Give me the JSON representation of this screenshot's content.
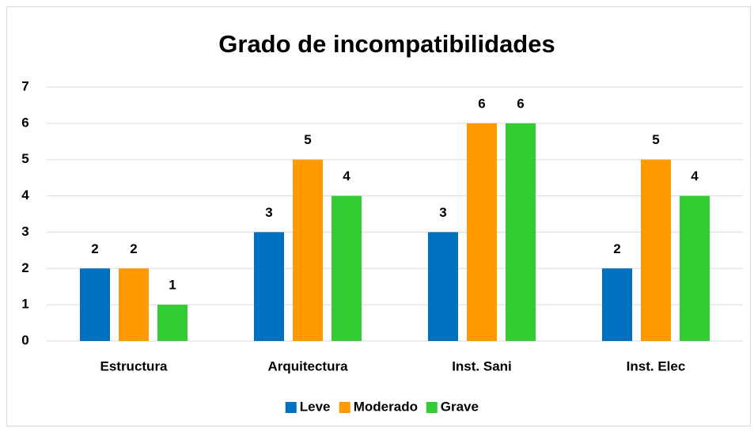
{
  "chart_data": {
    "type": "bar",
    "title": "Grado de incompatibilidades",
    "categories": [
      "Estructura",
      "Arquitectura",
      "Inst. Sani",
      "Inst. Elec"
    ],
    "series": [
      {
        "name": "Leve",
        "color": "#0070c0",
        "values": [
          2,
          3,
          3,
          2
        ]
      },
      {
        "name": "Moderado",
        "color": "#ff9900",
        "values": [
          2,
          5,
          6,
          5
        ]
      },
      {
        "name": "Grave",
        "color": "#33cc33",
        "values": [
          1,
          4,
          6,
          4
        ]
      }
    ],
    "ylim": [
      0,
      7
    ],
    "yticks": [
      0,
      1,
      2,
      3,
      4,
      5,
      6,
      7
    ],
    "grid": true,
    "legend": "bottom"
  }
}
